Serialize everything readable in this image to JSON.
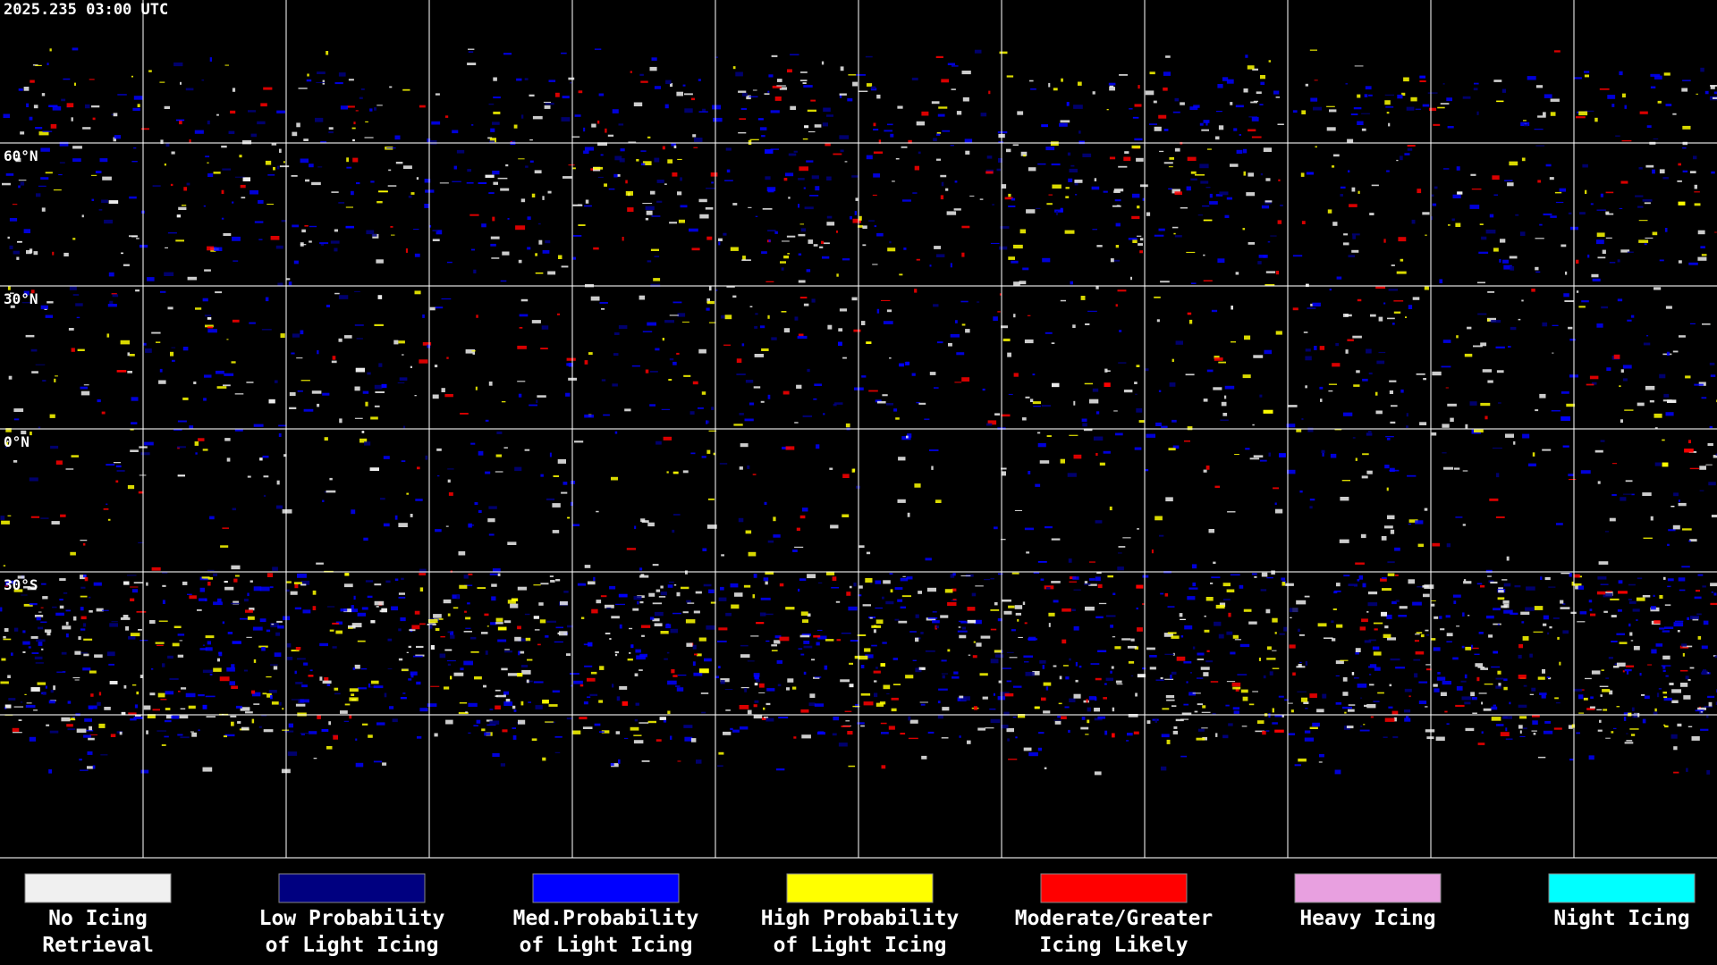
{
  "header": {
    "timestamp": "2025.235 03:00 UTC"
  },
  "map": {
    "latitude_labels": [
      "60°N",
      "30°N",
      "0°N",
      "30°S"
    ]
  },
  "legend": {
    "items": [
      {
        "lines": [
          "No Icing",
          "Retrieval"
        ],
        "color": "#f0f0f0"
      },
      {
        "lines": [
          "Low Probability",
          "of Light Icing"
        ],
        "color": "#000080"
      },
      {
        "lines": [
          "Med.Probability",
          "of Light Icing"
        ],
        "color": "#0000ff"
      },
      {
        "lines": [
          "High Probability",
          "of Light Icing"
        ],
        "color": "#ffff00"
      },
      {
        "lines": [
          "Moderate/Greater",
          "Icing Likely"
        ],
        "color": "#ff0000"
      },
      {
        "lines": [
          "Heavy Icing"
        ],
        "color": "#e8a0e0"
      },
      {
        "lines": [
          "Night Icing"
        ],
        "color": "#00ffff"
      }
    ]
  }
}
